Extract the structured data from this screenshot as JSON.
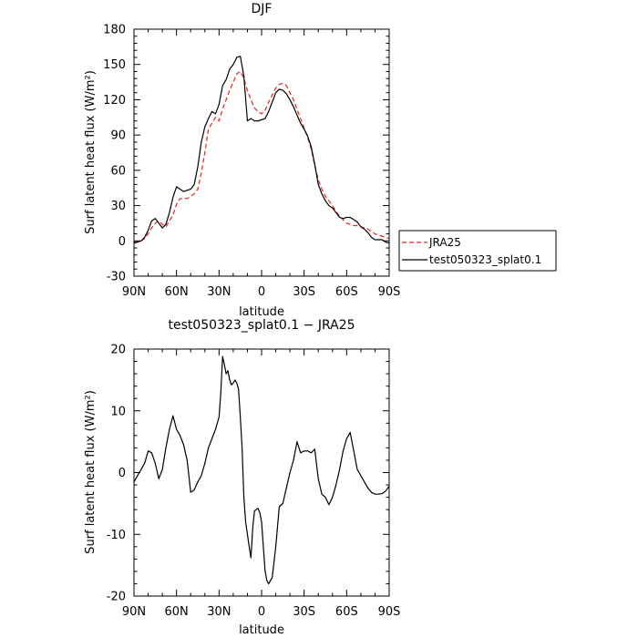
{
  "chart_data": [
    {
      "type": "line",
      "title": "DJF",
      "xlabel": "latitude",
      "ylabel": "Surf latent heat flux (W/m²)",
      "x_tick_labels": [
        "90N",
        "60N",
        "30N",
        "0",
        "30S",
        "60S",
        "90S"
      ],
      "xlim": [
        90,
        -90
      ],
      "ylim": [
        -30,
        180
      ],
      "y_ticks": [
        -30,
        0,
        30,
        60,
        90,
        120,
        150,
        180
      ],
      "legend_position": "right",
      "series": [
        {
          "name": "JRA25",
          "color": "#e8231f",
          "dash": "dashed",
          "x": [
            90,
            87.5,
            85,
            82.5,
            80,
            77.5,
            75,
            72.5,
            70,
            67.5,
            65,
            62.5,
            60,
            57.5,
            55,
            52.5,
            50,
            47.5,
            45,
            42.5,
            40,
            37.5,
            35,
            32.5,
            30,
            27.5,
            25,
            22.5,
            20,
            17.5,
            15,
            12.5,
            10,
            7.5,
            5,
            2.5,
            0,
            -2.5,
            -5,
            -7.5,
            -10,
            -12.5,
            -15,
            -17.5,
            -20,
            -22.5,
            -25,
            -27.5,
            -30,
            -32.5,
            -35,
            -37.5,
            -40,
            -42.5,
            -45,
            -47.5,
            -50,
            -52.5,
            -55,
            -57.5,
            -60,
            -62.5,
            -65,
            -67.5,
            -70,
            -72.5,
            -75,
            -77.5,
            -80,
            -82.5,
            -85,
            -87.5,
            -90
          ],
          "y": [
            -1,
            -1,
            0,
            2,
            6,
            11,
            15,
            17,
            14,
            12,
            17,
            22,
            31,
            36,
            36,
            36,
            38,
            40,
            44,
            58,
            75,
            95,
            100,
            105,
            102,
            112,
            120,
            128,
            135,
            142,
            144,
            138,
            128,
            120,
            113,
            110,
            108,
            111,
            118,
            124,
            130,
            133,
            134,
            132,
            126,
            120,
            112,
            104,
            96,
            88,
            78,
            64,
            52,
            44,
            38,
            34,
            30,
            25,
            21,
            18,
            15,
            14,
            13,
            13,
            12,
            11,
            10,
            8,
            6,
            5,
            4,
            3,
            2
          ]
        },
        {
          "name": "test050323_splat0.1",
          "color": "#000000",
          "dash": "solid",
          "x": [
            90,
            87.5,
            85,
            82.5,
            80,
            77.5,
            75,
            72.5,
            70,
            67.5,
            65,
            62.5,
            60,
            57.5,
            55,
            52.5,
            50,
            47.5,
            45,
            42.5,
            40,
            37.5,
            35,
            32.5,
            30,
            27.5,
            25,
            22.5,
            20,
            17.5,
            15,
            12.5,
            10,
            7.5,
            5,
            2.5,
            0,
            -2.5,
            -5,
            -7.5,
            -10,
            -12.5,
            -15,
            -17.5,
            -20,
            -22.5,
            -25,
            -27.5,
            -30,
            -32.5,
            -35,
            -37.5,
            -40,
            -42.5,
            -45,
            -47.5,
            -50,
            -52.5,
            -55,
            -57.5,
            -60,
            -62.5,
            -65,
            -67.5,
            -70,
            -72.5,
            -75,
            -77.5,
            -80,
            -82.5,
            -85,
            -87.5,
            -90
          ],
          "y": [
            -2,
            -1,
            0,
            3,
            9,
            17,
            19,
            15,
            11,
            14,
            24,
            37,
            46,
            44,
            42,
            43,
            44,
            48,
            63,
            84,
            97,
            104,
            110,
            108,
            116,
            132,
            137,
            146,
            150,
            156,
            157,
            140,
            102,
            104,
            102,
            102,
            103,
            104,
            110,
            118,
            126,
            129,
            128,
            125,
            120,
            114,
            107,
            100,
            95,
            89,
            80,
            65,
            48,
            40,
            34,
            30,
            28,
            24,
            20,
            19,
            20,
            20,
            18,
            16,
            12,
            10,
            7,
            3,
            1,
            1,
            1,
            -1,
            -2
          ]
        }
      ]
    },
    {
      "type": "line",
      "title": "test050323_splat0.1 − JRA25",
      "xlabel": "latitude",
      "ylabel": "Surf latent heat flux (W/m²)",
      "x_tick_labels": [
        "90N",
        "60N",
        "30N",
        "0",
        "30S",
        "60S",
        "90S"
      ],
      "xlim": [
        90,
        -90
      ],
      "ylim": [
        -20,
        20
      ],
      "y_ticks": [
        -20,
        -10,
        0,
        10,
        20
      ],
      "series": [
        {
          "color": "#000000",
          "dash": "solid",
          "x": [
            90,
            87.5,
            85,
            82.5,
            80,
            77.5,
            75,
            72.5,
            70,
            67.5,
            65,
            62.5,
            60,
            57.5,
            55,
            52.5,
            50,
            47.5,
            45,
            42.5,
            40,
            37.5,
            35,
            32.5,
            30,
            28.75,
            27.5,
            26.25,
            25,
            23.75,
            22.5,
            21.25,
            20,
            18.75,
            17.5,
            16.25,
            15,
            13.75,
            12.5,
            11.25,
            10,
            8.75,
            7.5,
            6.25,
            5,
            3.75,
            2.5,
            1.25,
            0,
            -1.25,
            -2.5,
            -3.75,
            -5,
            -7.5,
            -10,
            -12.5,
            -15,
            -17.5,
            -20,
            -22.5,
            -25,
            -27.5,
            -30,
            -32.5,
            -35,
            -37.5,
            -40,
            -42.5,
            -45,
            -47.5,
            -50,
            -52.5,
            -55,
            -57.5,
            -60,
            -62.5,
            -65,
            -67.5,
            -70,
            -72.5,
            -75,
            -77.5,
            -80,
            -82.5,
            -85,
            -87.5,
            -90
          ],
          "y": [
            -1.5,
            -0.5,
            0.5,
            1.5,
            3.5,
            3.2,
            1.5,
            -1,
            0.5,
            4,
            7,
            9.2,
            7,
            6,
            4.5,
            2,
            -3.2,
            -2.8,
            -1.5,
            -0.5,
            1.5,
            4,
            5.5,
            7,
            9,
            13,
            18.8,
            17.5,
            16,
            16.5,
            15,
            14.2,
            14.5,
            15,
            14.5,
            13.5,
            9,
            4,
            -4,
            -8,
            -10,
            -12,
            -13.8,
            -9,
            -6.2,
            -6,
            -5.8,
            -6.5,
            -8,
            -12,
            -16,
            -17.5,
            -18,
            -17,
            -12,
            -5.5,
            -5,
            -2.5,
            0,
            2,
            5,
            3.2,
            3.5,
            3.5,
            3.2,
            3.8,
            -1,
            -3.5,
            -4,
            -5.2,
            -4,
            -2,
            0.5,
            3.5,
            5.5,
            6.5,
            3.5,
            0.5,
            -0.5,
            -1.5,
            -2.5,
            -3.2,
            -3.5,
            -3.5,
            -3.4,
            -3,
            -2.2
          ]
        }
      ]
    }
  ]
}
